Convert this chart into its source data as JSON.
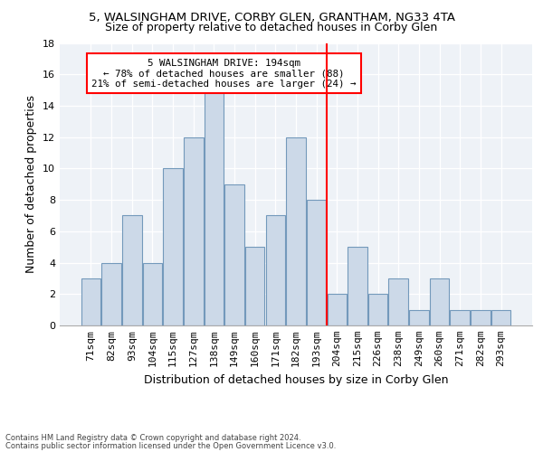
{
  "title1": "5, WALSINGHAM DRIVE, CORBY GLEN, GRANTHAM, NG33 4TA",
  "title2": "Size of property relative to detached houses in Corby Glen",
  "xlabel": "Distribution of detached houses by size in Corby Glen",
  "ylabel": "Number of detached properties",
  "categories": [
    "71sqm",
    "82sqm",
    "93sqm",
    "104sqm",
    "115sqm",
    "127sqm",
    "138sqm",
    "149sqm",
    "160sqm",
    "171sqm",
    "182sqm",
    "193sqm",
    "204sqm",
    "215sqm",
    "226sqm",
    "238sqm",
    "249sqm",
    "260sqm",
    "271sqm",
    "282sqm",
    "293sqm"
  ],
  "values": [
    3,
    4,
    7,
    4,
    10,
    12,
    15,
    9,
    5,
    7,
    12,
    8,
    2,
    5,
    2,
    3,
    1,
    3,
    1,
    1,
    1
  ],
  "bar_color": "#ccd9e8",
  "bar_edge_color": "#7399bb",
  "vline_color": "red",
  "annotation_title": "5 WALSINGHAM DRIVE: 194sqm",
  "annotation_line1": "← 78% of detached houses are smaller (88)",
  "annotation_line2": "21% of semi-detached houses are larger (24) →",
  "annotation_box_color": "white",
  "annotation_box_edge": "red",
  "ylim": [
    0,
    18
  ],
  "yticks": [
    0,
    2,
    4,
    6,
    8,
    10,
    12,
    14,
    16,
    18
  ],
  "footnote1": "Contains HM Land Registry data © Crown copyright and database right 2024.",
  "footnote2": "Contains public sector information licensed under the Open Government Licence v3.0.",
  "bg_color": "#eef2f7",
  "grid_color": "#ffffff",
  "title1_fontsize": 9.5,
  "title2_fontsize": 9.0,
  "ylabel_fontsize": 9,
  "xlabel_fontsize": 9,
  "tick_fontsize": 8,
  "annot_fontsize": 7.8
}
